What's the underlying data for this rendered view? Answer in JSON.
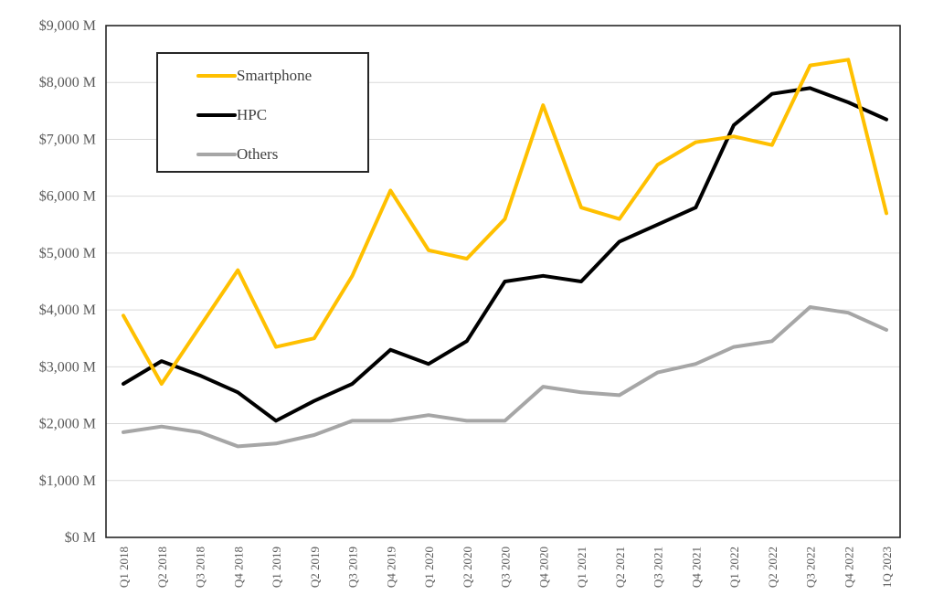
{
  "chart_data": {
    "type": "line",
    "title": "",
    "xlabel": "",
    "ylabel": "",
    "grid": true,
    "legend_position": "top-left-inside",
    "categories": [
      "Q1 2018",
      "Q2 2018",
      "Q3 2018",
      "Q4 2018",
      "Q1 2019",
      "Q2 2019",
      "Q3 2019",
      "Q4 2019",
      "Q1 2020",
      "Q2 2020",
      "Q3 2020",
      "Q4 2020",
      "Q1 2021",
      "Q2 2021",
      "Q3 2021",
      "Q4 2021",
      "Q1 2022",
      "Q2 2022",
      "Q3 2022",
      "Q4 2022",
      "1Q 2023"
    ],
    "series": [
      {
        "name": "Smartphone",
        "color": "#FFC000",
        "values": [
          3900,
          2700,
          3700,
          4700,
          3350,
          3500,
          4600,
          6100,
          5050,
          4900,
          5600,
          7600,
          5800,
          5600,
          6550,
          6950,
          7050,
          6900,
          8300,
          8400,
          5700
        ]
      },
      {
        "name": "HPC",
        "color": "#000000",
        "values": [
          2700,
          3100,
          2850,
          2550,
          2050,
          2400,
          2700,
          3300,
          3050,
          3450,
          4500,
          4600,
          4500,
          5200,
          5500,
          5800,
          7250,
          7800,
          7900,
          7650,
          7350
        ]
      },
      {
        "name": "Others",
        "color": "#A6A6A6",
        "values": [
          1850,
          1950,
          1850,
          1600,
          1650,
          1800,
          2050,
          2050,
          2150,
          2050,
          2050,
          2650,
          2550,
          2500,
          2900,
          3050,
          3350,
          3450,
          4050,
          3950,
          3650
        ]
      }
    ],
    "y_axis": {
      "min": 0,
      "max": 9000,
      "step": 1000,
      "tick_labels": [
        "$0 M",
        "$1,000 M",
        "$2,000 M",
        "$3,000 M",
        "$4,000 M",
        "$5,000 M",
        "$6,000 M",
        "$7,000 M",
        "$8,000 M",
        "$9,000 M"
      ]
    },
    "ylim": [
      0,
      9000
    ]
  },
  "colors": {
    "grid": "#D9D9D9",
    "axis_frame": "#262626",
    "tick_text": "#595959",
    "background": "#FFFFFF"
  }
}
